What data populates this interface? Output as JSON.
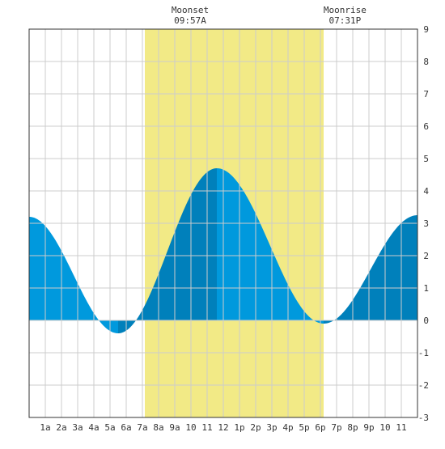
{
  "chart_data": {
    "type": "area",
    "title": "",
    "xlabel": "",
    "ylabel": "",
    "x_range_hours": [
      0,
      24
    ],
    "ylim": [
      -3,
      9
    ],
    "grid": true,
    "x_tick_labels": [
      "1a",
      "2a",
      "3a",
      "4a",
      "5a",
      "6a",
      "7a",
      "8a",
      "9a",
      "10",
      "11",
      "12",
      "1p",
      "2p",
      "3p",
      "4p",
      "5p",
      "6p",
      "7p",
      "8p",
      "9p",
      "10",
      "11"
    ],
    "y_tick_labels": [
      "-3",
      "-2",
      "-1",
      "0",
      "1",
      "2",
      "3",
      "4",
      "5",
      "6",
      "7",
      "8",
      "9"
    ],
    "moon_visible_window": {
      "start_hour": 7.15,
      "end_hour": 18.2
    },
    "annotations": [
      {
        "title": "Moonset",
        "time": "09:57A",
        "hour": 9.95
      },
      {
        "title": "Moonrise",
        "time": "07:31P",
        "hour": 19.52
      }
    ],
    "tide_extrema": [
      {
        "hour": 0.0,
        "height": 3.2,
        "kind": "start"
      },
      {
        "hour": 5.5,
        "height": -0.4,
        "kind": "low"
      },
      {
        "hour": 11.6,
        "height": 4.7,
        "kind": "high"
      },
      {
        "hour": 18.2,
        "height": -0.1,
        "kind": "low"
      },
      {
        "hour": 24.0,
        "height": 3.25,
        "kind": "end"
      }
    ],
    "rising_periods": [
      [
        5.5,
        11.6
      ],
      [
        18.2,
        24.0
      ]
    ],
    "colors": {
      "background": "#ffffff",
      "grid": "#cccccc",
      "axis": "#333333",
      "moon_window": "#f2ea86",
      "tide_falling": "#0099dd",
      "tide_rising": "#0080bb"
    }
  }
}
